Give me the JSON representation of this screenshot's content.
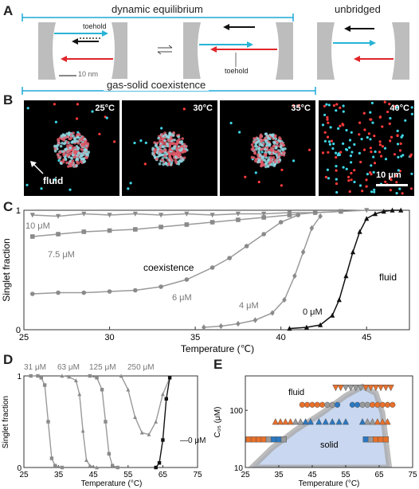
{
  "panelA": {
    "letter": "A",
    "dynamic_label": "dynamic equilibrium",
    "unbridged_label": "unbridged",
    "toehold_left": "toehold",
    "toehold_mid": "toehold",
    "scalebar": "10 nm",
    "colors": {
      "line": "#1ea8d8",
      "cyan": "#27b4d6",
      "red": "#e0262b",
      "wall": "#bdbdbd"
    }
  },
  "panelB": {
    "letter": "B",
    "coexist_label": "gas-solid coexistence",
    "temps": [
      "25°C",
      "30°C",
      "35°C",
      "40°C"
    ],
    "fluid_label": "fluid",
    "scalebar": "10 μm"
  },
  "panelC": {
    "letter": "C",
    "chart_data": {
      "type": "scatter",
      "xlabel": "Temperature (℃)",
      "ylabel": "Singlet fraction",
      "xlim": [
        25,
        47.5
      ],
      "ylim": [
        0,
        1
      ],
      "xticks": [
        "25",
        "30",
        "35",
        "40",
        "45"
      ],
      "yticks": [
        "0",
        "1"
      ],
      "annotations": [
        "coexistence",
        "fluid"
      ],
      "series": [
        {
          "name": "10 μM",
          "marker": "triangle-down",
          "color": "#8a8a8a",
          "x": [
            25.5,
            27,
            28.5,
            30,
            31.5,
            33,
            34.5,
            36,
            37.5,
            39,
            40.5,
            42,
            43.5,
            45
          ],
          "y": [
            0.96,
            0.95,
            0.97,
            0.96,
            0.97,
            0.96,
            0.97,
            0.96,
            0.97,
            0.97,
            0.98,
            0.98,
            0.99,
            1.0
          ]
        },
        {
          "name": "7.5 μM",
          "marker": "square",
          "color": "#8a8a8a",
          "x": [
            25.5,
            27,
            28.5,
            30,
            31.5,
            33,
            34.5,
            36,
            37.5,
            39,
            40.5,
            42,
            43.5
          ],
          "y": [
            0.78,
            0.8,
            0.82,
            0.83,
            0.84,
            0.86,
            0.88,
            0.9,
            0.92,
            0.94,
            0.96,
            0.98,
            0.99
          ]
        },
        {
          "name": "6 μM",
          "marker": "circle",
          "color": "#8a8a8a",
          "x": [
            25.5,
            27,
            28.5,
            30,
            31.5,
            33,
            34.5,
            36,
            37,
            38,
            39,
            40,
            41
          ],
          "y": [
            0.3,
            0.31,
            0.31,
            0.32,
            0.33,
            0.36,
            0.42,
            0.52,
            0.6,
            0.7,
            0.8,
            0.9,
            0.96
          ]
        },
        {
          "name": "4 μM",
          "marker": "diamond",
          "color": "#8a8a8a",
          "x": [
            35.5,
            36.5,
            37.5,
            38.5,
            39.5,
            40.2,
            40.8,
            41.3,
            41.8,
            42.3
          ],
          "y": [
            0.02,
            0.03,
            0.05,
            0.08,
            0.14,
            0.25,
            0.45,
            0.65,
            0.85,
            0.95
          ]
        },
        {
          "name": "0 μM",
          "marker": "triangle-up",
          "color": "#111111",
          "x": [
            40.5,
            41.5,
            42.3,
            43,
            43.4,
            43.8,
            44.2,
            44.6,
            45,
            45.5,
            46,
            46.5,
            47
          ],
          "y": [
            0.01,
            0.02,
            0.04,
            0.12,
            0.25,
            0.45,
            0.65,
            0.82,
            0.93,
            0.97,
            0.99,
            1.0,
            1.0
          ]
        }
      ]
    }
  },
  "panelD": {
    "letter": "D",
    "chart_data": {
      "type": "scatter",
      "xlabel": "Temperature (°C)",
      "ylabel": "Singlet fraction",
      "xlim": [
        25,
        75
      ],
      "ylim": [
        0,
        1
      ],
      "xticks": [
        "25",
        "35",
        "45",
        "55",
        "65",
        "75"
      ],
      "yticks": [
        "0",
        "1"
      ],
      "series": [
        {
          "name": "31 μM",
          "color": "#8a8a8a",
          "x": [
            27,
            29,
            30,
            31,
            32,
            33,
            34,
            36
          ],
          "y": [
            1.0,
            1.0,
            0.98,
            0.9,
            0.5,
            0.1,
            0.02,
            0.0
          ]
        },
        {
          "name": "63 μM",
          "color": "#8a8a8a",
          "x": [
            36,
            38,
            40,
            41,
            42,
            43,
            44,
            46
          ],
          "y": [
            1.0,
            0.99,
            0.95,
            0.8,
            0.4,
            0.08,
            0.02,
            0.0
          ]
        },
        {
          "name": "125 μM",
          "color": "#8a8a8a",
          "x": [
            44,
            46,
            47.5,
            48.5,
            49.5,
            50.5,
            52
          ],
          "y": [
            1.0,
            0.98,
            0.85,
            0.5,
            0.15,
            0.02,
            0.0
          ]
        },
        {
          "name": "250 μM",
          "color": "#8a8a8a",
          "x": [
            53,
            55,
            57,
            59,
            61,
            63,
            65,
            67
          ],
          "y": [
            1.0,
            0.85,
            0.55,
            0.38,
            0.36,
            0.5,
            0.8,
            0.98
          ]
        },
        {
          "name": "0 μM",
          "color": "#111111",
          "x": [
            63,
            64,
            65,
            66,
            67
          ],
          "y": [
            0.0,
            0.05,
            0.3,
            0.75,
            0.98
          ]
        }
      ]
    }
  },
  "panelE": {
    "letter": "E",
    "chart_data": {
      "type": "scatter",
      "xlabel": "Temperature (°C)",
      "ylabel": "C₀₅ (μM)",
      "xlim": [
        25,
        75
      ],
      "ylim": [
        10,
        400
      ],
      "yscale": "log",
      "xticks": [
        "25",
        "35",
        "45",
        "55",
        "65",
        "75"
      ],
      "yticks": [
        "10",
        "100"
      ],
      "region_labels": [
        "fluid",
        "solid"
      ],
      "colors": {
        "fluid": "#e8702a",
        "solid": "#2a78c2",
        "grey": "#9a9a9a",
        "region": "#c9d8f0"
      },
      "rows": [
        {
          "c": 31,
          "x": [
            26,
            27.5,
            29,
            30.5,
            32,
            33.5,
            35,
            36.5
          ],
          "state": [
            "o",
            "o",
            "o",
            "o",
            "g",
            "s",
            "s",
            "g"
          ],
          "marker": "square"
        },
        {
          "c": 31,
          "x": [
            61,
            62.5,
            64,
            65.5,
            67
          ],
          "state": [
            "s",
            "g",
            "o",
            "o",
            "o"
          ],
          "marker": "square"
        },
        {
          "c": 63,
          "x": [
            34,
            35.5,
            37,
            38.5,
            40,
            41.5,
            43,
            44.5
          ],
          "state": [
            "o",
            "o",
            "o",
            "o",
            "g",
            "g",
            "s",
            "s"
          ],
          "marker": "triangle-up"
        },
        {
          "c": 63,
          "x": [
            47,
            49,
            51,
            53,
            55
          ],
          "state": [
            "s",
            "s",
            "s",
            "s",
            "s"
          ],
          "marker": "triangle-up"
        },
        {
          "c": 63,
          "x": [
            60,
            61.5,
            63,
            64.5,
            66,
            67.5
          ],
          "state": [
            "s",
            "g",
            "g",
            "o",
            "o",
            "o"
          ],
          "marker": "triangle-up"
        },
        {
          "c": 125,
          "x": [
            42,
            43.5,
            45,
            46.5,
            48,
            49.5,
            51,
            52.5
          ],
          "state": [
            "o",
            "o",
            "o",
            "o",
            "o",
            "g",
            "g",
            "s"
          ],
          "marker": "circle"
        },
        {
          "c": 125,
          "x": [
            57,
            58.5,
            60,
            61.5,
            63,
            64.5,
            66,
            67.5,
            69
          ],
          "state": [
            "s",
            "s",
            "g",
            "g",
            "o",
            "o",
            "o",
            "o",
            "o"
          ],
          "marker": "circle"
        },
        {
          "c": 250,
          "x": [
            52,
            53.5,
            55,
            56.5,
            58,
            59.5,
            61,
            62.5,
            64,
            65.5,
            67,
            68.5
          ],
          "state": [
            "o",
            "o",
            "g",
            "g",
            "g",
            "g",
            "o",
            "o",
            "o",
            "o",
            "o",
            "o"
          ],
          "marker": "triangle-down"
        }
      ]
    }
  }
}
